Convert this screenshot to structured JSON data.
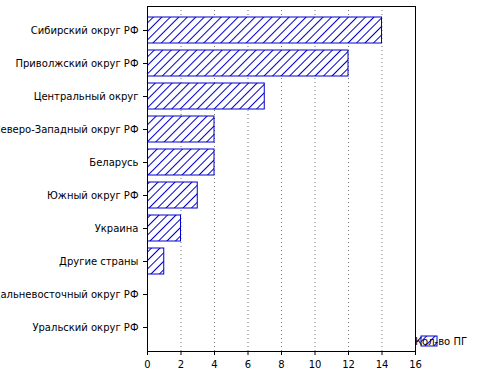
{
  "chart_data": {
    "type": "bar",
    "orientation": "horizontal",
    "categories": [
      "Сибирский округ РФ",
      "Приволжский округ РФ",
      "Центральный округ",
      "Северо-Западный округ РФ",
      "Беларусь",
      "Южный округ РФ",
      "Украина",
      "Другие страны",
      "Дальневосточный округ РФ",
      "Уральский округ РФ"
    ],
    "series": [
      {
        "name": "Кол-во ПГ",
        "color": "#0000cc",
        "values": [
          14,
          12,
          7,
          4,
          4,
          3,
          2,
          1,
          0,
          0
        ]
      }
    ],
    "xlim": [
      0,
      16
    ],
    "xticks": [
      0,
      2,
      4,
      6,
      8,
      10,
      12,
      14,
      16
    ],
    "grid": true,
    "legend": "bottom right"
  }
}
